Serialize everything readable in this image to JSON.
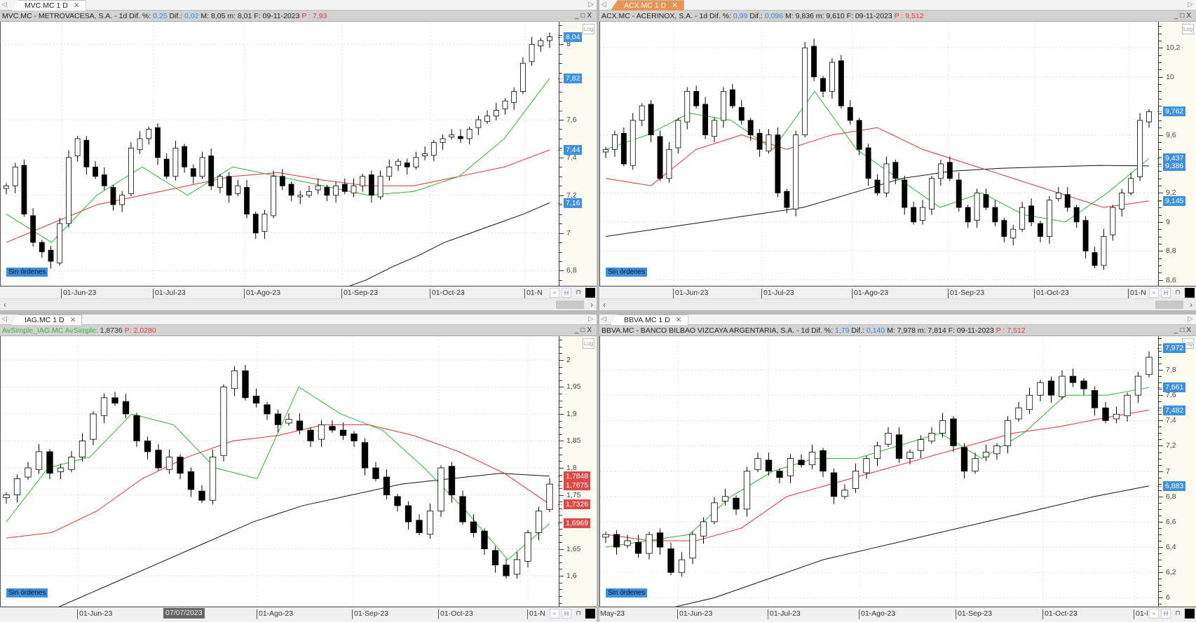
{
  "panels": [
    {
      "tab": "MVC.MC 1 D",
      "active": false,
      "header": [
        {
          "t": "MVC.MC - METROVACESA, S.A. - 1d Dif. %: ",
          "c": "#222"
        },
        {
          "t": "0,25",
          "c": "#3a87d8"
        },
        {
          "t": " Dif.: ",
          "c": "#222"
        },
        {
          "t": "0,02",
          "c": "#3a87d8"
        },
        {
          "t": " M: 8,05 m: 8,01 F: 09-11-2023 ",
          "c": "#222"
        },
        {
          "t": "P : 7,93",
          "c": "#e03a3a"
        }
      ],
      "orders_label": "Sin órdenes",
      "log_label": "Log",
      "crosshair_date": ""
    },
    {
      "tab": "ACX.MC 1 D",
      "active": true,
      "header": [
        {
          "t": "ACX.MC - ACERINOX, S.A. - 1d Dif. %: ",
          "c": "#222"
        },
        {
          "t": "0,99",
          "c": "#3a87d8"
        },
        {
          "t": " Dif.: ",
          "c": "#222"
        },
        {
          "t": "0,096",
          "c": "#3a87d8"
        },
        {
          "t": " M: 9,836 m: 9,610 F: 09-11-2023 ",
          "c": "#222"
        },
        {
          "t": "P : 9,512",
          "c": "#e03a3a"
        }
      ],
      "orders_label": "Sin órdenes",
      "log_label": "Log",
      "crosshair_date": ""
    },
    {
      "tab": "IAG.MC 1 D",
      "active": false,
      "header": [
        {
          "t": "AvSimple_IAG.MC  AvSimple: ",
          "c": "#3cb043"
        },
        {
          "t": "1,8736 ",
          "c": "#333"
        },
        {
          "t": "P: 2,0280",
          "c": "#e03a3a"
        }
      ],
      "orders_label": "Sin órdenes",
      "log_label": "Log",
      "crosshair_date": "07/07/2023"
    },
    {
      "tab": "BBVA.MC 1 D",
      "active": false,
      "header": [
        {
          "t": "BBVA.MC - BANCO BILBAO VIZCAYA ARGENTARIA, S.A. - 1d Dif. %: ",
          "c": "#222"
        },
        {
          "t": "1,79",
          "c": "#3a87d8"
        },
        {
          "t": " Dif.: ",
          "c": "#222"
        },
        {
          "t": "0,140",
          "c": "#3a87d8"
        },
        {
          "t": " M: 7,978 m: 7,814 F: 09-11-2023 ",
          "c": "#222"
        },
        {
          "t": "P : 7,512",
          "c": "#e03a3a"
        }
      ],
      "orders_label": "Sin órdenes",
      "log_label": "Log",
      "crosshair_date": ""
    }
  ],
  "chart_data": [
    {
      "type": "candlestick",
      "symbol": "MVC.MC",
      "ylim": [
        6.72,
        8.12
      ],
      "yticks": [
        {
          "v": 6.8,
          "l": "6,8"
        },
        {
          "v": 7,
          "l": "7"
        },
        {
          "v": 7.2,
          "l": "7,2"
        },
        {
          "v": 7.4,
          "l": "7,4"
        },
        {
          "v": 7.6,
          "l": "7,6"
        },
        {
          "v": 8,
          "l": "8"
        }
      ],
      "xticks": [
        "01-Jun-23",
        "01-Jul-23",
        "01-Ago-23",
        "01-Sep-23",
        "01-Oct-23",
        "01-N"
      ],
      "closes": [
        7.25,
        7.35,
        7.1,
        6.95,
        6.9,
        6.85,
        7.05,
        7.4,
        7.5,
        7.35,
        7.3,
        7.25,
        7.15,
        7.2,
        7.45,
        7.5,
        7.55,
        7.4,
        7.3,
        7.45,
        7.35,
        7.3,
        7.4,
        7.25,
        7.3,
        7.2,
        7.25,
        7.1,
        7.0,
        7.1,
        7.3,
        7.25,
        7.2,
        7.2,
        7.22,
        7.25,
        7.2,
        7.25,
        7.22,
        7.25,
        7.3,
        7.2,
        7.3,
        7.35,
        7.38,
        7.35,
        7.4,
        7.42,
        7.48,
        7.5,
        7.52,
        7.5,
        7.55,
        7.6,
        7.62,
        7.65,
        7.7,
        7.75,
        7.9,
        8.0,
        8.02,
        8.04
      ],
      "ma_fast": [
        7.1,
        6.95,
        7.2,
        7.35,
        7.2,
        7.35,
        7.3,
        7.25,
        7.2,
        7.22,
        7.3,
        7.5,
        7.82
      ],
      "ma_mid": [
        6.95,
        7.05,
        7.15,
        7.2,
        7.25,
        7.3,
        7.32,
        7.28,
        7.25,
        7.25,
        7.3,
        7.35,
        7.44
      ],
      "ma_slow": [
        6.5,
        6.55,
        6.6,
        6.65,
        6.7,
        6.75,
        6.82,
        6.88,
        6.95,
        7.0,
        7.05,
        7.1,
        7.16
      ],
      "price_tags": [
        {
          "v": 8.04,
          "l": "8,04",
          "c": "#3d8fe0"
        },
        {
          "v": 7.82,
          "l": "7,82",
          "c": "#3d8fe0"
        },
        {
          "v": 7.44,
          "l": "7,44",
          "c": "#3d8fe0"
        },
        {
          "v": 7.16,
          "l": "7,16",
          "c": "#3d8fe0"
        }
      ]
    },
    {
      "type": "candlestick",
      "symbol": "ACX.MC",
      "ylim": [
        8.56,
        10.38
      ],
      "yticks": [
        {
          "v": 8.6,
          "l": "8,6"
        },
        {
          "v": 8.8,
          "l": "8,8"
        },
        {
          "v": 9,
          "l": "9"
        },
        {
          "v": 9.2,
          "l": "9,2"
        },
        {
          "v": 9.6,
          "l": "9,6"
        },
        {
          "v": 10,
          "l": "10"
        },
        {
          "v": 10.2,
          "l": "10,2"
        }
      ],
      "xticks": [
        "01-Jun-23",
        "01-Jul-23",
        "01-Ago-23",
        "01-Sep-23",
        "01-Oct-23",
        "01-N"
      ],
      "closes": [
        9.5,
        9.6,
        9.4,
        9.7,
        9.8,
        9.6,
        9.3,
        9.5,
        9.7,
        9.9,
        9.8,
        9.6,
        9.7,
        9.9,
        9.8,
        9.7,
        9.6,
        9.5,
        9.6,
        9.2,
        9.1,
        9.6,
        10.2,
        10.0,
        9.9,
        10.1,
        9.8,
        9.7,
        9.5,
        9.3,
        9.2,
        9.4,
        9.3,
        9.1,
        9.0,
        9.1,
        9.3,
        9.4,
        9.3,
        9.1,
        9.0,
        9.2,
        9.1,
        9.0,
        8.9,
        8.95,
        9.1,
        9.0,
        8.9,
        9.15,
        9.2,
        9.1,
        9.0,
        8.8,
        8.7,
        8.9,
        9.1,
        9.2,
        9.3,
        9.7,
        9.76
      ],
      "ma_fast": [
        9.5,
        9.6,
        9.75,
        9.7,
        9.5,
        9.9,
        9.5,
        9.3,
        9.1,
        9.2,
        9.05,
        9.0,
        9.2,
        9.437
      ],
      "ma_mid": [
        9.3,
        9.25,
        9.5,
        9.6,
        9.5,
        9.6,
        9.65,
        9.5,
        9.4,
        9.3,
        9.2,
        9.1,
        9.145
      ],
      "ma_slow": [
        8.9,
        8.95,
        9.0,
        9.05,
        9.1,
        9.2,
        9.3,
        9.35,
        9.37,
        9.38,
        9.39,
        9.386
      ],
      "price_tags": [
        {
          "v": 9.762,
          "l": "9,762",
          "c": "#3d8fe0"
        },
        {
          "v": 9.437,
          "l": "9,437",
          "c": "#3d8fe0"
        },
        {
          "v": 9.386,
          "l": "9,386",
          "c": "#3d8fe0"
        },
        {
          "v": 9.145,
          "l": "9,145",
          "c": "#3d8fe0"
        }
      ]
    },
    {
      "type": "candlestick",
      "symbol": "IAG.MC",
      "ylim": [
        1.543,
        2.044
      ],
      "yticks": [
        {
          "v": 1.6,
          "l": "1,6"
        },
        {
          "v": 1.65,
          "l": "1,65"
        },
        {
          "v": 1.75,
          "l": "1,75"
        },
        {
          "v": 1.8,
          "l": "1,8"
        },
        {
          "v": 1.85,
          "l": "1,85"
        },
        {
          "v": 1.9,
          "l": "1,9"
        },
        {
          "v": 1.95,
          "l": "1,95"
        },
        {
          "v": 2,
          "l": "2"
        }
      ],
      "xticks": [
        "01-Jun-23",
        "01-Ago-23",
        "01-Sep-23",
        "01-Oct-23",
        "01-N"
      ],
      "closes": [
        1.75,
        1.78,
        1.8,
        1.83,
        1.79,
        1.8,
        1.82,
        1.85,
        1.9,
        1.93,
        1.92,
        1.9,
        1.85,
        1.83,
        1.8,
        1.82,
        1.79,
        1.76,
        1.74,
        1.82,
        1.95,
        1.98,
        1.93,
        1.92,
        1.9,
        1.88,
        1.89,
        1.87,
        1.85,
        1.88,
        1.87,
        1.86,
        1.85,
        1.8,
        1.78,
        1.75,
        1.73,
        1.7,
        1.68,
        1.72,
        1.8,
        1.75,
        1.7,
        1.68,
        1.65,
        1.62,
        1.6,
        1.63,
        1.68,
        1.72,
        1.77
      ],
      "ma_fast": [
        1.7,
        1.8,
        1.82,
        1.9,
        1.88,
        1.8,
        1.78,
        1.95,
        1.9,
        1.87,
        1.8,
        1.72,
        1.63,
        1.6969
      ],
      "ma_mid": [
        1.67,
        1.68,
        1.72,
        1.78,
        1.82,
        1.85,
        1.86,
        1.88,
        1.88,
        1.86,
        1.83,
        1.79,
        1.7326
      ],
      "ma_slow": [
        1.5,
        1.54,
        1.58,
        1.62,
        1.66,
        1.7,
        1.73,
        1.75,
        1.77,
        1.78,
        1.79,
        1.7848
      ],
      "price_tags": [
        {
          "v": 1.7848,
          "l": "1,7848",
          "c": "#e04848"
        },
        {
          "v": 1.7675,
          "l": "1,7675",
          "c": "#e04848"
        },
        {
          "v": 1.7326,
          "l": "1,7326",
          "c": "#e04848"
        },
        {
          "v": 1.6969,
          "l": "1,6969",
          "c": "#e04848"
        }
      ]
    },
    {
      "type": "candlestick",
      "symbol": "BBVA.MC",
      "ylim": [
        5.93,
        8.066
      ],
      "yticks": [
        {
          "v": 6,
          "l": "6"
        },
        {
          "v": 6.2,
          "l": "6,2"
        },
        {
          "v": 6.4,
          "l": "6,4"
        },
        {
          "v": 6.6,
          "l": "6,6"
        },
        {
          "v": 6.8,
          "l": "6,8"
        },
        {
          "v": 7,
          "l": "7"
        },
        {
          "v": 7.2,
          "l": "7,2"
        },
        {
          "v": 7.4,
          "l": "7,4"
        },
        {
          "v": 7.6,
          "l": "7,6"
        },
        {
          "v": 7.8,
          "l": "7,8"
        }
      ],
      "xticks": [
        "May-23",
        "01-Jun-23",
        "01-Jul-23",
        "01-Ago-23",
        "01-Sep-23",
        "01-Oct-23",
        "01-N"
      ],
      "closes": [
        6.5,
        6.4,
        6.45,
        6.35,
        6.5,
        6.4,
        6.2,
        6.3,
        6.5,
        6.6,
        6.75,
        6.8,
        6.7,
        7.0,
        7.1,
        7.0,
        6.95,
        7.1,
        7.05,
        7.15,
        7.0,
        6.8,
        6.85,
        7.0,
        7.1,
        7.2,
        7.3,
        7.1,
        7.15,
        7.25,
        7.3,
        7.4,
        7.2,
        7.0,
        7.1,
        7.15,
        7.2,
        7.4,
        7.5,
        7.6,
        7.7,
        7.6,
        7.75,
        7.7,
        7.65,
        7.5,
        7.4,
        7.45,
        7.6,
        7.75,
        7.9
      ],
      "ma_fast": [
        6.4,
        6.45,
        6.5,
        6.8,
        7.0,
        7.1,
        7.1,
        7.2,
        7.3,
        7.1,
        7.3,
        7.6,
        7.6,
        7.661
      ],
      "ma_mid": [
        6.5,
        6.45,
        6.45,
        6.55,
        6.8,
        6.9,
        7.0,
        7.1,
        7.2,
        7.3,
        7.35,
        7.42,
        7.482
      ],
      "ma_slow": [
        5.8,
        5.9,
        6.0,
        6.15,
        6.3,
        6.4,
        6.5,
        6.6,
        6.7,
        6.8,
        6.883
      ],
      "price_tags": [
        {
          "v": 7.972,
          "l": "7,972",
          "c": "#3d8fe0"
        },
        {
          "v": 7.661,
          "l": "7,661",
          "c": "#3d8fe0"
        },
        {
          "v": 7.482,
          "l": "7,482",
          "c": "#3d8fe0"
        },
        {
          "v": 6.883,
          "l": "6,883",
          "c": "#3d8fe0"
        }
      ]
    }
  ]
}
